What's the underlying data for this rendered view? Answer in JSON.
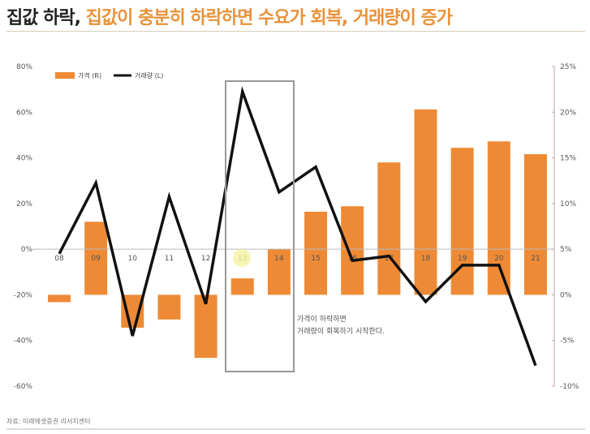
{
  "title": {
    "part1": "집값 하락, ",
    "part2": "집값이 충분히 하락하면 수요가 회복, 거래량이 증가"
  },
  "source": "자료: 미래에셋증권 리서치센터",
  "colors": {
    "bar": "#ee8a35",
    "line": "#111111",
    "title_accent": "#e8923a",
    "right_axis": "#c9a0a0"
  },
  "chart_data": {
    "type": "bar+line",
    "categories": [
      "08",
      "09",
      "10",
      "11",
      "12",
      "13",
      "14",
      "15",
      "16",
      "17",
      "18",
      "19",
      "20",
      "21"
    ],
    "series": [
      {
        "name": "가격 (R)",
        "type": "bar",
        "axis": "right",
        "values": [
          -0.8,
          8.0,
          -3.6,
          -2.7,
          -6.9,
          1.8,
          5.0,
          9.1,
          9.7,
          14.5,
          20.3,
          16.1,
          16.8,
          15.4
        ]
      },
      {
        "name": "거래량 (L)",
        "type": "line",
        "axis": "left",
        "values": [
          -2,
          29,
          -38,
          23,
          -24,
          69,
          25,
          36,
          -5,
          -3,
          -23,
          -7,
          -7,
          -51
        ]
      }
    ],
    "left_axis": {
      "range": [
        -60,
        80
      ],
      "ticks": [
        "80%",
        "60%",
        "40%",
        "20%",
        "0%",
        "-20%",
        "-40%",
        "-60%"
      ]
    },
    "right_axis": {
      "range": [
        -10,
        25
      ],
      "ticks": [
        "25%",
        "20%",
        "15%",
        "10%",
        "5%",
        "0%",
        "-5%",
        "-10%"
      ]
    },
    "legend_placement": "top-left",
    "grid": false,
    "annotation": {
      "lines": [
        "가격이 하락하면",
        "거래량이 회복하기 시작한다."
      ],
      "highlight_category": "13"
    }
  }
}
